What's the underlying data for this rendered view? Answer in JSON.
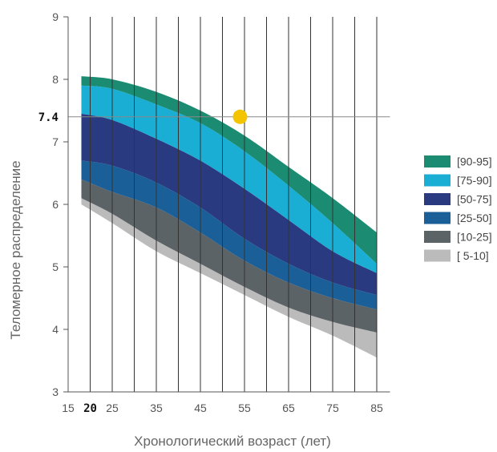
{
  "chart_data": {
    "type": "area",
    "xlabel": "Хронологический возраст (лет)",
    "ylabel": "Теломерное распределение",
    "xlim": [
      15,
      88
    ],
    "ylim": [
      3,
      9
    ],
    "x_ticks": [
      "15",
      "20",
      "25",
      "35",
      "45",
      "55",
      "65",
      "75",
      "85"
    ],
    "x_tick_values": [
      15,
      20,
      25,
      35,
      45,
      55,
      65,
      75,
      85
    ],
    "x_highlight_tick": "20",
    "x_gridlines": [
      20,
      25,
      30,
      35,
      40,
      45,
      50,
      55,
      60,
      65,
      70,
      75,
      80,
      85
    ],
    "y_ticks": [
      "3",
      "4",
      "5",
      "6",
      "7",
      "8",
      "9"
    ],
    "y_tick_values": [
      3,
      4,
      5,
      6,
      7,
      8,
      9
    ],
    "marker": {
      "label": "7.4",
      "x": 54,
      "y": 7.4,
      "color": "#f5c400"
    },
    "x": [
      18,
      25,
      35,
      45,
      55,
      65,
      75,
      85
    ],
    "boundaries": [
      [
        6.0,
        5.7,
        5.25,
        4.9,
        4.55,
        4.2,
        3.9,
        3.55
      ],
      [
        6.1,
        5.85,
        5.42,
        5.05,
        4.68,
        4.35,
        4.12,
        3.95
      ],
      [
        6.4,
        6.2,
        5.95,
        5.55,
        5.1,
        4.75,
        4.5,
        4.32
      ],
      [
        6.7,
        6.62,
        6.35,
        5.95,
        5.45,
        5.05,
        4.75,
        4.55
      ],
      [
        7.45,
        7.35,
        7.05,
        6.7,
        6.25,
        5.75,
        5.25,
        4.9
      ],
      [
        7.9,
        7.85,
        7.6,
        7.3,
        6.85,
        6.3,
        5.7,
        5.05
      ],
      [
        8.05,
        8.0,
        7.8,
        7.5,
        7.1,
        6.6,
        6.1,
        5.55
      ]
    ],
    "series": [
      {
        "name": "[ 5-10]",
        "color": "#bbbbbb"
      },
      {
        "name": "[10-25]",
        "color": "#5c6367"
      },
      {
        "name": "[25-50]",
        "color": "#1a5f98"
      },
      {
        "name": "[50-75]",
        "color": "#293a80"
      },
      {
        "name": "[75-90]",
        "color": "#1aaed4"
      },
      {
        "name": "[90-95]",
        "color": "#1b8c72"
      }
    ]
  }
}
